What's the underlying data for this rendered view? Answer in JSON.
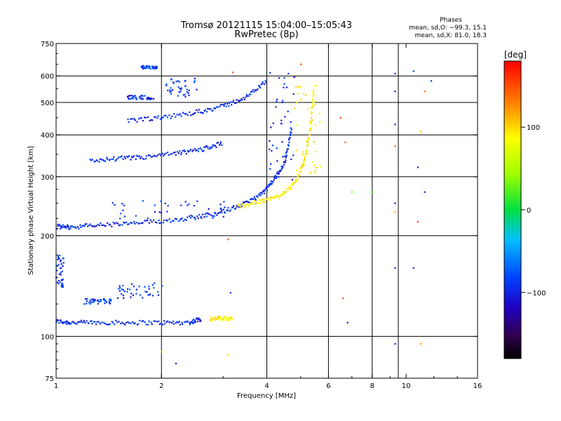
{
  "chart_data": {
    "type": "scatter",
    "title": "Tromsø 20121115 15:04:00–15:05:43",
    "subtitle": "RwPretec (8p)",
    "xlabel": "Frequency [MHz]",
    "ylabel": "Stationary phase Virtual Height [km]",
    "x_scale": "log",
    "y_scale": "log",
    "xlim": [
      1,
      16
    ],
    "ylim": [
      75,
      750
    ],
    "x_ticks": [
      1,
      2,
      4,
      6,
      8,
      10,
      16
    ],
    "x_tick_labels": [
      "1",
      "2",
      "4",
      "6",
      "8",
      "10",
      "16"
    ],
    "x_gridlines": [
      2,
      4,
      6,
      8,
      9.5
    ],
    "y_ticks": [
      75,
      100,
      200,
      300,
      400,
      500,
      600,
      750
    ],
    "y_tick_labels": [
      "75",
      "100",
      "200",
      "300",
      "400",
      "500",
      "600",
      "750"
    ],
    "y_gridlines": [
      100,
      200,
      300,
      400,
      500,
      600
    ],
    "phase_box": {
      "heading": "Phases",
      "line_o": "mean, sd,O: −99.3, 15.1",
      "line_x": "mean, sd,X:  81.0, 18.3"
    },
    "colorbar": {
      "label": "[deg]",
      "range": [
        -180,
        180
      ],
      "ticks": [
        100,
        0,
        -100
      ],
      "tick_labels": [
        "100",
        "0",
        "−100"
      ]
    },
    "traces": [
      {
        "kind": "curve",
        "phase": -105,
        "f": [
          1.0,
          1.1,
          1.3,
          1.6,
          2.0,
          2.4,
          2.6
        ],
        "h": [
          111,
          110,
          110,
          110,
          110,
          110,
          113
        ]
      },
      {
        "kind": "curve",
        "phase": 95,
        "f": [
          2.75,
          3.0,
          3.2
        ],
        "h": [
          113,
          113,
          113
        ]
      },
      {
        "kind": "cloud",
        "phase": -105,
        "f": [
          1.0,
          1.05
        ],
        "h": [
          140,
          175
        ]
      },
      {
        "kind": "cloud",
        "phase": -95,
        "f": [
          1.2,
          1.45
        ],
        "h": [
          125,
          130
        ]
      },
      {
        "kind": "cloud",
        "phase": -100,
        "f": [
          1.5,
          2.05
        ],
        "h": [
          130,
          145
        ]
      },
      {
        "kind": "curve",
        "phase": -105,
        "f": [
          1.0,
          1.1,
          1.3,
          1.6,
          2.0,
          2.5,
          3.0,
          3.5,
          3.9,
          4.2,
          4.5,
          4.7
        ],
        "h": [
          213,
          212,
          215,
          217,
          221,
          227,
          236,
          250,
          268,
          295,
          330,
          420
        ]
      },
      {
        "kind": "cloud",
        "phase": -100,
        "f": [
          1.4,
          3.1
        ],
        "h": [
          225,
          255
        ]
      },
      {
        "kind": "cloud",
        "phase": -110,
        "f": [
          4.05,
          4.85
        ],
        "h": [
          290,
          620
        ]
      },
      {
        "kind": "curve",
        "phase": 95,
        "f": [
          3.3,
          3.8,
          4.3,
          4.8,
          5.1,
          5.3,
          5.45
        ],
        "h": [
          245,
          252,
          262,
          285,
          330,
          400,
          550
        ]
      },
      {
        "kind": "cloud",
        "phase": 90,
        "f": [
          4.8,
          5.7
        ],
        "h": [
          300,
          570
        ]
      },
      {
        "kind": "curve",
        "phase": -105,
        "f": [
          1.25,
          1.5,
          1.8,
          2.2,
          2.6,
          3.0
        ],
        "h": [
          335,
          340,
          343,
          352,
          362,
          378
        ]
      },
      {
        "kind": "curve",
        "phase": -105,
        "f": [
          1.6,
          2.0,
          2.5,
          3.0,
          3.5,
          4.0
        ],
        "h": [
          440,
          450,
          467,
          487,
          520,
          580
        ]
      },
      {
        "kind": "cloud",
        "phase": -105,
        "f": [
          1.6,
          1.9
        ],
        "h": [
          510,
          525
        ]
      },
      {
        "kind": "cloud",
        "phase": -100,
        "f": [
          2.05,
          2.55
        ],
        "h": [
          520,
          590
        ]
      },
      {
        "kind": "cloud",
        "phase": -100,
        "f": [
          1.75,
          1.95
        ],
        "h": [
          630,
          645
        ]
      }
    ],
    "points": [
      {
        "f": 6.5,
        "h": 450,
        "phase": 150
      },
      {
        "f": 6.7,
        "h": 380,
        "phase": 140
      },
      {
        "f": 6.6,
        "h": 130,
        "phase": 150
      },
      {
        "f": 6.8,
        "h": 110,
        "phase": -110
      },
      {
        "f": 7.0,
        "h": 270,
        "phase": 30
      },
      {
        "f": 8.0,
        "h": 270,
        "phase": 20
      },
      {
        "f": 9.3,
        "h": 610,
        "phase": -110
      },
      {
        "f": 9.3,
        "h": 540,
        "phase": -120
      },
      {
        "f": 9.3,
        "h": 430,
        "phase": -110
      },
      {
        "f": 9.3,
        "h": 370,
        "phase": 140
      },
      {
        "f": 9.3,
        "h": 250,
        "phase": -110
      },
      {
        "f": 9.3,
        "h": 235,
        "phase": 120
      },
      {
        "f": 9.3,
        "h": 160,
        "phase": -110
      },
      {
        "f": 9.3,
        "h": 95,
        "phase": -110
      },
      {
        "f": 10.5,
        "h": 620,
        "phase": -100
      },
      {
        "f": 11.3,
        "h": 540,
        "phase": 140
      },
      {
        "f": 11.0,
        "h": 410,
        "phase": 110
      },
      {
        "f": 11.8,
        "h": 580,
        "phase": -100
      },
      {
        "f": 10.8,
        "h": 320,
        "phase": -110
      },
      {
        "f": 11.3,
        "h": 270,
        "phase": -110
      },
      {
        "f": 10.8,
        "h": 220,
        "phase": 150
      },
      {
        "f": 10.5,
        "h": 160,
        "phase": -110
      },
      {
        "f": 11.0,
        "h": 95,
        "phase": 120
      },
      {
        "f": 3.2,
        "h": 615,
        "phase": 150
      },
      {
        "f": 2.2,
        "h": 83,
        "phase": -110
      },
      {
        "f": 2.0,
        "h": 90,
        "phase": 40
      },
      {
        "f": 3.1,
        "h": 88,
        "phase": 100
      },
      {
        "f": 3.15,
        "h": 135,
        "phase": -110
      },
      {
        "f": 3.1,
        "h": 195,
        "phase": 150
      },
      {
        "f": 5.0,
        "h": 650,
        "phase": 150
      }
    ]
  }
}
